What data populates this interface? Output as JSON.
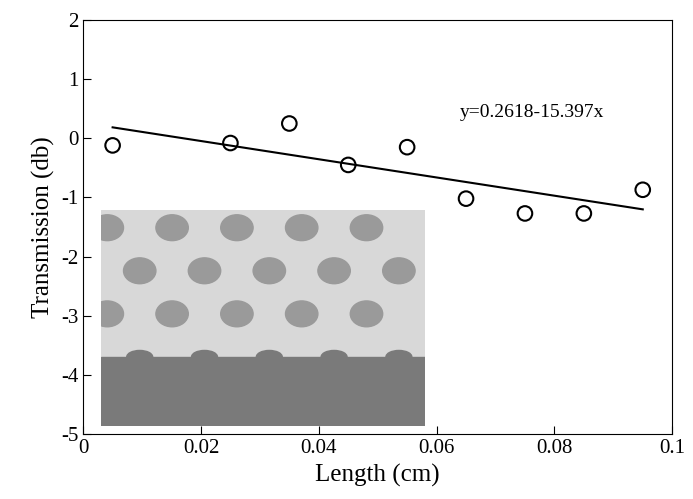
{
  "chart_data": {
    "type": "scatter",
    "x_label": "Length (cm)",
    "y_label": "Transmission (db)",
    "annotations": [
      "y=0.2618-15.397x"
    ],
    "xlim": [
      0,
      0.1
    ],
    "xticks": [
      0,
      0.02,
      0.04,
      0.06,
      0.08,
      0.1
    ],
    "ylim": [
      -5,
      2
    ],
    "yticks": [
      -5,
      -4,
      -3,
      -2,
      -1,
      0,
      1,
      2
    ],
    "grid": false,
    "series": [
      {
        "type": "scatter",
        "marker": "o",
        "color": "#000000",
        "x": [
          0.005,
          0.025,
          0.035,
          0.045,
          0.055,
          0.065,
          0.075,
          0.085,
          0.095
        ],
        "values": [
          -0.12,
          -0.08,
          0.25,
          -0.45,
          -0.15,
          -1.02,
          -1.27,
          -1.27,
          -0.87
        ]
      },
      {
        "type": "line",
        "line_style": "solid",
        "color": "#000000",
        "x": [
          0.005,
          0.095
        ],
        "values": [
          0.185,
          -1.201
        ]
      }
    ]
  }
}
